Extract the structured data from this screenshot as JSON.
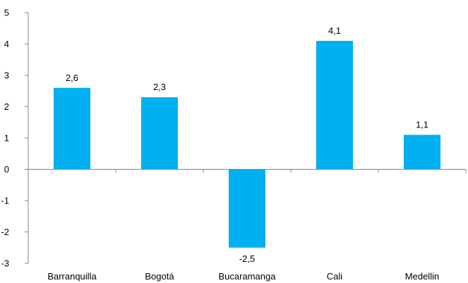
{
  "chart_data": {
    "type": "bar",
    "title": "",
    "xlabel": "",
    "ylabel": "",
    "categories": [
      "Barranquilla",
      "Bogotá",
      "Bucaramanga",
      "Cali",
      "Medellin"
    ],
    "values": [
      2.6,
      2.3,
      -2.5,
      4.1,
      1.1
    ],
    "data_labels": [
      "2,6",
      "2,3",
      "-2,5",
      "4,1",
      "1,1"
    ],
    "ylim": [
      -3,
      5
    ],
    "y_ticks": [
      5,
      4,
      3,
      2,
      1,
      0,
      -1,
      -2,
      -3
    ],
    "y_tick_labels": [
      "5",
      "4",
      "3",
      "2",
      "1",
      "0",
      "-1",
      "-2",
      "-3"
    ],
    "bar_color": "#00B0F0",
    "axis_color": "#868686",
    "grid": false,
    "legend": "none"
  }
}
